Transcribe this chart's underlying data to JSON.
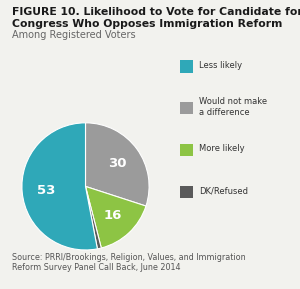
{
  "title_line1": "FIGURE 10. Likelihood to Vote for Candidate for",
  "title_line2": "Congress Who Opposes Immigration Reform",
  "subtitle": "Among Registered Voters",
  "source": "Source: PRRI/Brookings, Religion, Values, and Immigration\nReform Survey Panel Call Back, June 2014",
  "slices": [
    53,
    30,
    16,
    1
  ],
  "colors": [
    "#2fa8b8",
    "#9b9b9b",
    "#8dc444",
    "#5a5a5a"
  ],
  "legend_labels": [
    "Less likely",
    "Would not make\na difference",
    "More likely",
    "DK/Refused"
  ],
  "text_color_white": "#ffffff",
  "background_color": "#f2f2ee",
  "title_fontsize": 7.8,
  "subtitle_fontsize": 7.0,
  "source_fontsize": 5.8,
  "label_fontsize": 9.5
}
